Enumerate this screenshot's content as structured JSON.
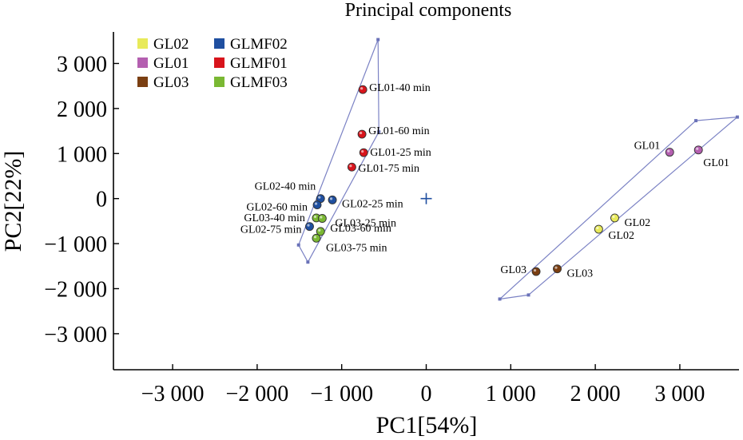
{
  "chart_data": {
    "type": "scatter",
    "title": "Principal components",
    "xlabel": "PC1[54%]",
    "ylabel": "PC2[22%]",
    "xlim": [
      -3700,
      3700
    ],
    "ylim": [
      -3800,
      3700
    ],
    "x_ticks": [
      {
        "value": -3000,
        "label": "−3 000"
      },
      {
        "value": -2000,
        "label": "−2 000"
      },
      {
        "value": -1000,
        "label": "−1 000"
      },
      {
        "value": 0,
        "label": "0"
      },
      {
        "value": 1000,
        "label": "1 000"
      },
      {
        "value": 2000,
        "label": "2 000"
      },
      {
        "value": 3000,
        "label": "3 000"
      }
    ],
    "y_ticks": [
      {
        "value": 3000,
        "label": "3 000"
      },
      {
        "value": 2000,
        "label": "2 000"
      },
      {
        "value": 1000,
        "label": "1 000"
      },
      {
        "value": 0,
        "label": "0"
      },
      {
        "value": -1000,
        "label": "−1 000"
      },
      {
        "value": -2000,
        "label": "−2 000"
      },
      {
        "value": -3000,
        "label": "−3 000"
      }
    ],
    "grid": false,
    "legend_position": "top-left",
    "legend": [
      {
        "name": "GL02",
        "color": "#e8ea5a"
      },
      {
        "name": "GLMF02",
        "color": "#1f4fa0"
      },
      {
        "name": "GL01",
        "color": "#b45fb0"
      },
      {
        "name": "GLMF01",
        "color": "#d8141c"
      },
      {
        "name": "GL03",
        "color": "#7b3f12"
      },
      {
        "name": "GLMF03",
        "color": "#7ab833"
      }
    ],
    "origin_marker": {
      "x": 0,
      "y": 0,
      "color": "#1f4fa0"
    },
    "series": [
      {
        "name": "GLMF01",
        "color": "#d8141c",
        "points": [
          {
            "x": -750,
            "y": 2420,
            "label": "GL01-40 min"
          },
          {
            "x": -760,
            "y": 1430,
            "label": "GL01-60 min"
          },
          {
            "x": -740,
            "y": 1020,
            "label": "GL01-25 min"
          },
          {
            "x": -880,
            "y": 700,
            "label": "GL01-75 min"
          }
        ]
      },
      {
        "name": "GLMF02",
        "color": "#1f4fa0",
        "points": [
          {
            "x": -1250,
            "y": 0,
            "label": "GL02-40 min"
          },
          {
            "x": -1290,
            "y": -140,
            "label": "GL02-60 min"
          },
          {
            "x": -1110,
            "y": -30,
            "label": "GL02-25 min"
          },
          {
            "x": -1380,
            "y": -620,
            "label": "GL02-75 min"
          }
        ]
      },
      {
        "name": "GLMF03",
        "color": "#7ab833",
        "points": [
          {
            "x": -1300,
            "y": -430,
            "label": "GL03-40 min"
          },
          {
            "x": -1230,
            "y": -440,
            "label": "GL03-25 min"
          },
          {
            "x": -1250,
            "y": -730,
            "label": "GL03-60 min"
          },
          {
            "x": -1300,
            "y": -880,
            "label": "GL03-75 min"
          }
        ]
      },
      {
        "name": "GL01",
        "color": "#b45fb0",
        "points": [
          {
            "x": 2880,
            "y": 1030,
            "label": "GL01"
          },
          {
            "x": 3220,
            "y": 1080,
            "label": "GL01"
          }
        ]
      },
      {
        "name": "GL02",
        "color": "#e8ea5a",
        "points": [
          {
            "x": 2230,
            "y": -430,
            "label": "GL02"
          },
          {
            "x": 2040,
            "y": -680,
            "label": "GL02"
          }
        ]
      },
      {
        "name": "GL03",
        "color": "#7b3f12",
        "points": [
          {
            "x": 1300,
            "y": -1620,
            "label": "GL03"
          },
          {
            "x": 1550,
            "y": -1560,
            "label": "GL03"
          }
        ]
      }
    ],
    "hulls": [
      {
        "points": [
          [
            -570,
            3530
          ],
          [
            -560,
            1480
          ],
          [
            -1400,
            -1410
          ],
          [
            -1510,
            -1030
          ]
        ]
      },
      {
        "points": [
          [
            870,
            -2230
          ],
          [
            1210,
            -2140
          ],
          [
            3680,
            1810
          ],
          [
            3190,
            1730
          ]
        ]
      }
    ]
  }
}
